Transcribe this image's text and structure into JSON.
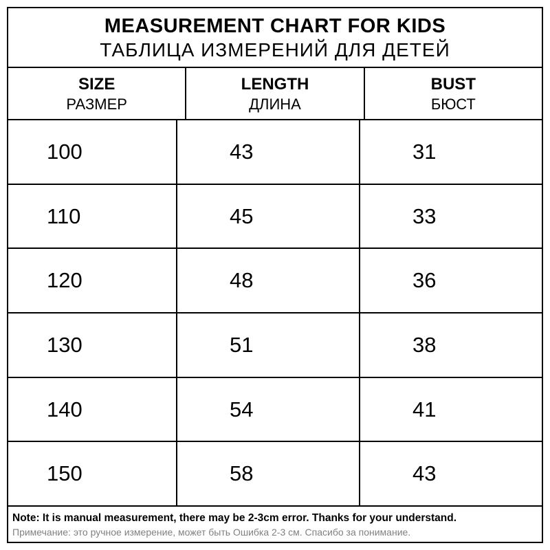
{
  "title": {
    "en": "MEASUREMENT CHART FOR KIDS",
    "ru": "ТАБЛИЦА ИЗМЕРЕНИЙ ДЛЯ ДЕТЕЙ"
  },
  "headers": {
    "size": {
      "en": "SIZE",
      "ru": "РАЗМЕР"
    },
    "length": {
      "en": "LENGTH",
      "ru": "ДЛИНА"
    },
    "bust": {
      "en": "BUST",
      "ru": "БЮСТ"
    }
  },
  "rows": [
    {
      "size": "100",
      "length": "43",
      "bust": "31"
    },
    {
      "size": "110",
      "length": "45",
      "bust": "33"
    },
    {
      "size": "120",
      "length": "48",
      "bust": "36"
    },
    {
      "size": "130",
      "length": "51",
      "bust": "38"
    },
    {
      "size": "140",
      "length": "54",
      "bust": "41"
    },
    {
      "size": "150",
      "length": "58",
      "bust": "43"
    }
  ],
  "note": {
    "en": "Note: It is manual measurement, there may be 2-3cm error. Thanks for your understand.",
    "ru": "Примечание: это ручное измерение, может быть Ошибка 2-3 см. Спасибо за понимание."
  },
  "colors": {
    "background": "#ffffff",
    "border": "#000000",
    "text": "#000000",
    "note_ru": "#808080"
  },
  "layout": {
    "type": "table",
    "columns": 3,
    "data_rows": 6,
    "border_width": 2
  }
}
